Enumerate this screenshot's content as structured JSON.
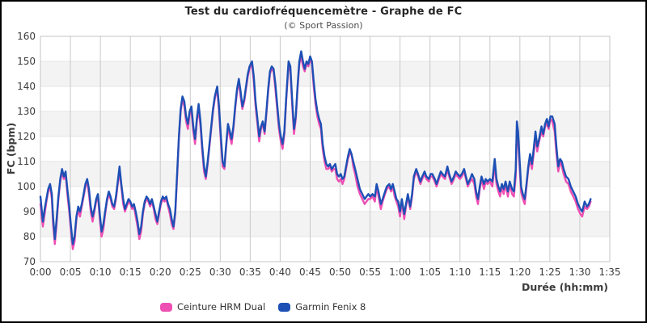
{
  "header": {
    "title": "Test du cardiofréquencemètre - Graphe de FC",
    "subtitle": "(© Sport Passion)"
  },
  "axes": {
    "y_title": "FC (bpm)",
    "x_title": "Durée (hh:mm)"
  },
  "legend": [
    {
      "label": "Ceinture HRM Dual",
      "color": "#ee4fb3"
    },
    {
      "label": "Garmin Fenix 8",
      "color": "#1d50b5"
    }
  ],
  "colors": {
    "hrm_pink": "#ee4fb3",
    "fenix_blue": "#1d50b5",
    "band_gray": "#f3f3f3",
    "grid_horizontal": "#e4e4e4",
    "grid_vertical": "#c9c9c9",
    "plot_frame": "#c4c4c4",
    "text": "#3c3c3c"
  },
  "chart_data": {
    "type": "line",
    "title": "Test du cardiofréquencemètre - Graphe de FC",
    "subtitle": "(© Sport Passion)",
    "xlabel": "Durée (hh:mm)",
    "ylabel": "FC (bpm)",
    "xlim": [
      0,
      95
    ],
    "ylim": [
      70,
      160
    ],
    "grid": true,
    "banded_rows": true,
    "legend_position": "bottom",
    "x_tick_minutes": [
      0,
      5,
      10,
      15,
      20,
      25,
      30,
      35,
      40,
      45,
      50,
      55,
      60,
      65,
      70,
      75,
      80,
      85,
      90,
      95
    ],
    "x_tick_labels": [
      "0:00",
      "0:05",
      "0:10",
      "0:15",
      "0:20",
      "0:25",
      "0:30",
      "0:35",
      "0:40",
      "0:45",
      "0:50",
      "0:55",
      "1:00",
      "1:05",
      "1:10",
      "1:15",
      "1:20",
      "1:25",
      "1:30",
      "1:35"
    ],
    "y_tick_values": [
      70,
      80,
      90,
      100,
      110,
      120,
      130,
      140,
      150,
      160
    ],
    "y_tick_labels": [
      "70",
      "80",
      "90",
      "100",
      "110",
      "120",
      "130",
      "140",
      "150",
      "160"
    ],
    "x_minutes": [
      0,
      0.2,
      0.4,
      0.7,
      1,
      1.3,
      1.6,
      1.9,
      2.1,
      2.4,
      2.7,
      3,
      3.3,
      3.6,
      3.9,
      4.2,
      4.5,
      4.8,
      5.1,
      5.4,
      5.7,
      6,
      6.3,
      6.6,
      6.9,
      7.2,
      7.5,
      7.8,
      8.1,
      8.4,
      8.7,
      9,
      9.3,
      9.6,
      9.9,
      10.2,
      10.5,
      10.8,
      11.1,
      11.4,
      11.7,
      12,
      12.3,
      12.6,
      12.9,
      13.2,
      13.5,
      13.8,
      14.1,
      14.4,
      14.7,
      15,
      15.3,
      15.6,
      15.9,
      16.2,
      16.5,
      16.8,
      17.1,
      17.4,
      17.7,
      18,
      18.3,
      18.6,
      18.9,
      19.2,
      19.5,
      19.8,
      20.1,
      20.4,
      20.7,
      21,
      21.3,
      21.6,
      21.9,
      22.2,
      22.5,
      22.8,
      23.1,
      23.4,
      23.7,
      24,
      24.3,
      24.6,
      24.9,
      25.2,
      25.5,
      25.8,
      26.1,
      26.4,
      26.7,
      27,
      27.3,
      27.6,
      27.9,
      28.2,
      28.5,
      28.8,
      29.1,
      29.5,
      29.8,
      30.1,
      30.4,
      30.7,
      31,
      31.3,
      31.6,
      31.9,
      32.2,
      32.5,
      32.8,
      33.1,
      33.4,
      33.7,
      34,
      34.3,
      34.6,
      34.9,
      35.3,
      35.6,
      35.9,
      36.2,
      36.5,
      36.8,
      37.1,
      37.4,
      37.7,
      38,
      38.3,
      38.6,
      38.9,
      39.2,
      39.5,
      39.8,
      40.1,
      40.4,
      40.7,
      41,
      41.4,
      41.7,
      42,
      42.3,
      42.6,
      42.9,
      43.2,
      43.5,
      43.8,
      44.1,
      44.4,
      44.7,
      45,
      45.3,
      45.6,
      45.9,
      46.2,
      46.5,
      46.8,
      47.1,
      47.4,
      47.7,
      48,
      48.3,
      48.6,
      48.9,
      49.2,
      49.5,
      49.8,
      50.1,
      50.4,
      50.7,
      51,
      51.3,
      51.6,
      51.9,
      52.2,
      52.5,
      52.9,
      53.3,
      53.7,
      54.1,
      54.4,
      54.7,
      55,
      55.4,
      55.8,
      56.1,
      56.4,
      56.8,
      57.1,
      57.5,
      57.8,
      58.2,
      58.5,
      58.8,
      59.1,
      59.4,
      59.7,
      60,
      60.3,
      60.7,
      61,
      61.3,
      61.7,
      62,
      62.3,
      62.7,
      63,
      63.4,
      63.7,
      64.1,
      64.4,
      64.8,
      65.1,
      65.4,
      65.8,
      66.1,
      66.5,
      66.8,
      67.1,
      67.5,
      67.9,
      68.2,
      68.6,
      69,
      69.3,
      69.6,
      70,
      70.3,
      70.7,
      71,
      71.3,
      71.7,
      72,
      72.4,
      72.7,
      73,
      73.3,
      73.6,
      74,
      74.3,
      74.6,
      75,
      75.4,
      75.8,
      76.1,
      76.4,
      76.7,
      77,
      77.3,
      77.6,
      78,
      78.3,
      78.7,
      79,
      79.3,
      79.5,
      79.7,
      79.9,
      80.2,
      80.5,
      80.8,
      81.1,
      81.4,
      81.7,
      82,
      82.3,
      82.6,
      82.9,
      83.2,
      83.6,
      83.9,
      84.2,
      84.5,
      84.8,
      85.1,
      85.4,
      85.8,
      86.1,
      86.4,
      86.7,
      87,
      87.3,
      87.7,
      88.1,
      88.5,
      88.9,
      89.3,
      89.7,
      90.1,
      90.4,
      90.8,
      91.2,
      91.5,
      91.8
    ],
    "series": [
      {
        "name": "Ceinture HRM Dual",
        "color": "#ee4fb3",
        "values": [
          93,
          88,
          84,
          89,
          94,
          98,
          100,
          95,
          85,
          77,
          85,
          95,
          102,
          106,
          103,
          105,
          97,
          90,
          82,
          75,
          78,
          87,
          91,
          88,
          92,
          96,
          100,
          102,
          97,
          90,
          86,
          90,
          94,
          96,
          87,
          80,
          83,
          89,
          94,
          97,
          95,
          92,
          91,
          95,
          101,
          106,
          100,
          93,
          90,
          92,
          94,
          93,
          91,
          92,
          88,
          84,
          79,
          82,
          89,
          93,
          95,
          94,
          92,
          94,
          91,
          87,
          85,
          89,
          93,
          95,
          94,
          95,
          92,
          89,
          85,
          83,
          89,
          104,
          119,
          130,
          135,
          132,
          126,
          123,
          129,
          130,
          122,
          117,
          126,
          131,
          124,
          114,
          106,
          103,
          109,
          116,
          123,
          130,
          135,
          139,
          130,
          118,
          108,
          107,
          116,
          124,
          120,
          117,
          123,
          131,
          138,
          142,
          136,
          131,
          134,
          139,
          144,
          147,
          149,
          142,
          132,
          125,
          118,
          123,
          125,
          121,
          129,
          138,
          145,
          147,
          146,
          139,
          131,
          123,
          118,
          115,
          121,
          134,
          149,
          146,
          133,
          121,
          127,
          139,
          149,
          152,
          148,
          146,
          149,
          148,
          151,
          149,
          140,
          133,
          128,
          125,
          123,
          115,
          110,
          107,
          107,
          108,
          106,
          107,
          107,
          103,
          102,
          103,
          101,
          103,
          107,
          111,
          113,
          113,
          108,
          105,
          100,
          97,
          95,
          93,
          94,
          95,
          95,
          96,
          94,
          100,
          96,
          91,
          94,
          97,
          99,
          100,
          98,
          100,
          96,
          94,
          92,
          88,
          94,
          87,
          92,
          96,
          91,
          96,
          103,
          106,
          104,
          101,
          103,
          105,
          103,
          102,
          104,
          104,
          102,
          100,
          103,
          105,
          104,
          103,
          107,
          104,
          101,
          103,
          105,
          104,
          103,
          104,
          106,
          103,
          100,
          102,
          103,
          101,
          96,
          93,
          99,
          103,
          99,
          102,
          101,
          102,
          100,
          109,
          101,
          98,
          96,
          100,
          97,
          101,
          96,
          101,
          97,
          96,
          104,
          123,
          119,
          110,
          98,
          95,
          93,
          100,
          107,
          111,
          107,
          113,
          120,
          114,
          118,
          122,
          120,
          124,
          125,
          123,
          127,
          126,
          122,
          113,
          106,
          110,
          108,
          105,
          102,
          101,
          98,
          96,
          94,
          91,
          89,
          88,
          92,
          91,
          92,
          94
        ]
      },
      {
        "name": "Garmin Fenix 8",
        "color": "#1d50b5",
        "values": [
          96,
          91,
          86,
          91,
          95,
          99,
          101,
          97,
          88,
          79,
          87,
          96,
          103,
          107,
          104,
          106,
          99,
          92,
          84,
          77,
          80,
          88,
          92,
          90,
          93,
          97,
          101,
          103,
          99,
          92,
          88,
          91,
          95,
          97,
          89,
          82,
          85,
          90,
          95,
          98,
          96,
          93,
          92,
          96,
          102,
          108,
          101,
          95,
          91,
          93,
          95,
          94,
          92,
          93,
          90,
          86,
          81,
          84,
          90,
          94,
          96,
          95,
          93,
          95,
          92,
          89,
          86,
          90,
          94,
          96,
          95,
          96,
          93,
          91,
          87,
          84,
          90,
          105,
          120,
          131,
          136,
          134,
          128,
          125,
          130,
          132,
          124,
          119,
          127,
          133,
          126,
          116,
          108,
          104,
          110,
          117,
          124,
          131,
          136,
          140,
          132,
          120,
          110,
          108,
          117,
          125,
          122,
          119,
          124,
          132,
          139,
          143,
          138,
          132,
          135,
          140,
          145,
          148,
          150,
          144,
          134,
          127,
          120,
          124,
          126,
          122,
          130,
          139,
          146,
          148,
          147,
          141,
          133,
          125,
          120,
          117,
          122,
          135,
          150,
          148,
          135,
          123,
          128,
          140,
          150,
          154,
          150,
          147,
          150,
          149,
          152,
          150,
          142,
          135,
          130,
          127,
          125,
          117,
          112,
          109,
          108,
          109,
          107,
          108,
          109,
          105,
          104,
          105,
          103,
          104,
          108,
          112,
          115,
          113,
          110,
          107,
          103,
          99,
          97,
          95,
          96,
          97,
          96,
          97,
          96,
          101,
          98,
          93,
          95,
          98,
          100,
          101,
          99,
          101,
          98,
          95,
          94,
          90,
          95,
          89,
          93,
          97,
          92,
          97,
          104,
          107,
          105,
          102,
          104,
          106,
          104,
          103,
          105,
          105,
          103,
          101,
          104,
          106,
          105,
          104,
          108,
          105,
          102,
          104,
          106,
          105,
          104,
          105,
          107,
          104,
          101,
          103,
          105,
          103,
          98,
          95,
          100,
          104,
          101,
          103,
          102,
          103,
          102,
          111,
          103,
          100,
          98,
          101,
          99,
          102,
          98,
          102,
          99,
          98,
          107,
          126,
          122,
          113,
          100,
          97,
          95,
          101,
          108,
          113,
          109,
          115,
          122,
          116,
          119,
          124,
          121,
          125,
          127,
          124,
          128,
          128,
          125,
          116,
          108,
          111,
          110,
          107,
          104,
          103,
          100,
          98,
          96,
          93,
          91,
          90,
          94,
          92,
          93,
          95
        ]
      }
    ]
  }
}
